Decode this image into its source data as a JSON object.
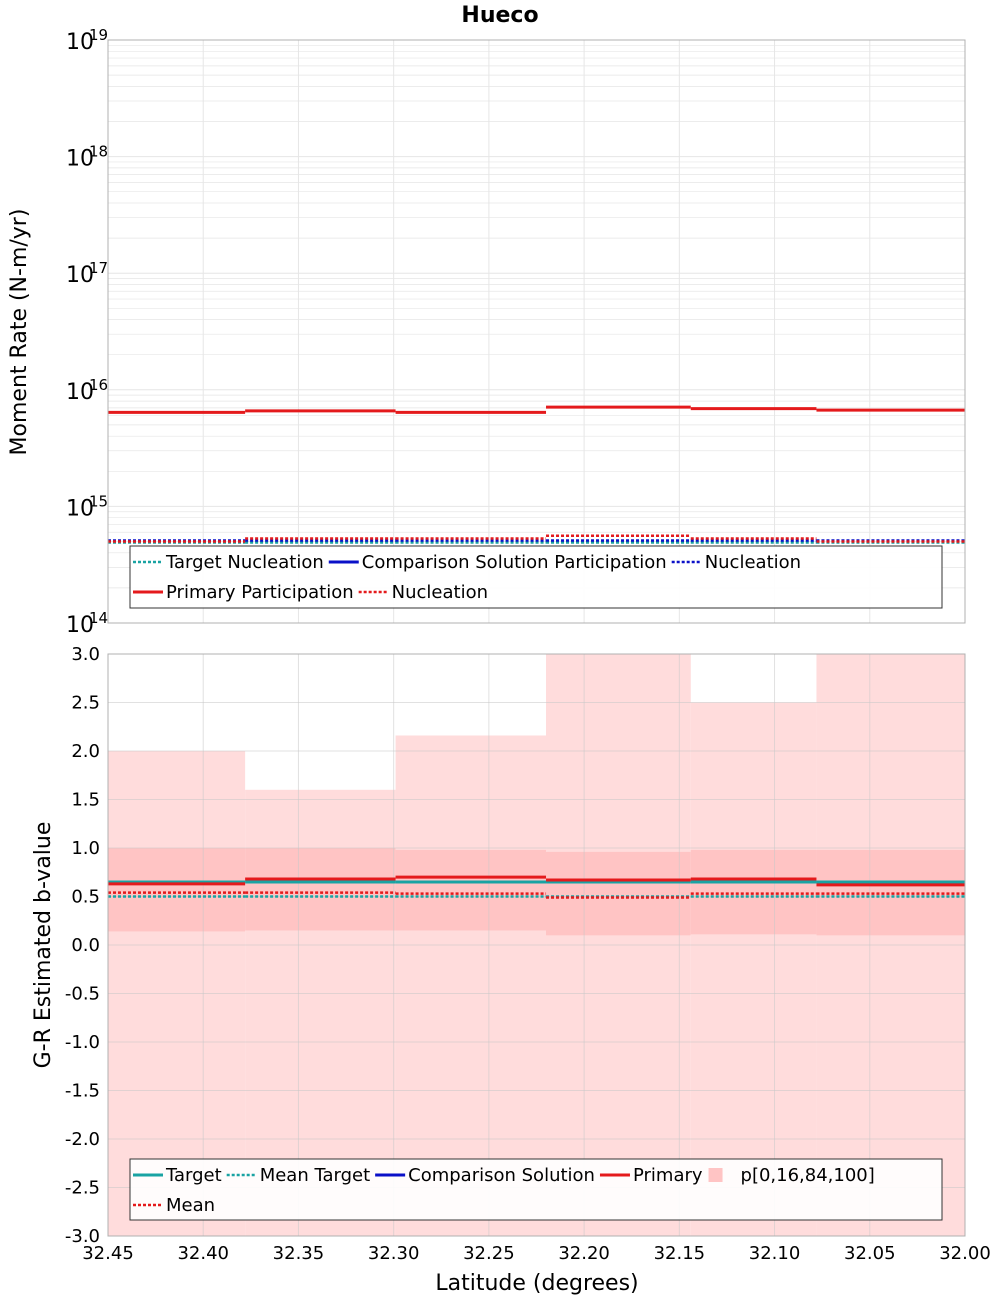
{
  "title": "Hueco",
  "colors": {
    "target": "#1aa3a3",
    "comparison": "#0a10c8",
    "primary": "#e41a1c",
    "band_outer": "#ffdcdc",
    "band_inner": "#ffc4c4",
    "grid": "#e6e6e6",
    "frame": "#b0b0b0"
  },
  "chart_data": [
    {
      "type": "line",
      "name": "moment-rate",
      "ylabel": "Moment Rate (N-m/yr)",
      "yscale": "log",
      "ylim": [
        100000000000000.0,
        1e+19
      ],
      "ytick_labels": [
        {
          "base": "10",
          "exp": "14"
        },
        {
          "base": "10",
          "exp": "15"
        },
        {
          "base": "10",
          "exp": "16"
        },
        {
          "base": "10",
          "exp": "17"
        },
        {
          "base": "10",
          "exp": "18"
        },
        {
          "base": "10",
          "exp": "19"
        }
      ],
      "xlim": [
        32.45,
        32.0
      ],
      "bin_edges": [
        32.45,
        32.378,
        32.299,
        32.22,
        32.144,
        32.078,
        32.0
      ],
      "series": [
        {
          "name": "Target Nucleation",
          "color": "#1aa3a3",
          "style": "dotted",
          "values": [
            490000000000000.0,
            490000000000000.0,
            490000000000000.0,
            490000000000000.0,
            490000000000000.0,
            490000000000000.0
          ]
        },
        {
          "name": "Comparison Solution Participation",
          "color": "#0a10c8",
          "style": "solid",
          "values": [
            null,
            null,
            null,
            null,
            null,
            null
          ]
        },
        {
          "name": "Nucleation",
          "color": "#0a10c8",
          "style": "dotted",
          "values": [
            510000000000000.0,
            510000000000000.0,
            510000000000000.0,
            510000000000000.0,
            510000000000000.0,
            510000000000000.0
          ]
        },
        {
          "name": "Primary Participation",
          "color": "#e41a1c",
          "style": "solid",
          "values": [
            6400000000000000.0,
            6600000000000000.0,
            6400000000000000.0,
            7100000000000000.0,
            6900000000000000.0,
            6700000000000000.0
          ]
        },
        {
          "name": "Nucleation",
          "color": "#e41a1c",
          "style": "dotted",
          "values": [
            500000000000000.0,
            530000000000000.0,
            530000000000000.0,
            560000000000000.0,
            530000000000000.0,
            500000000000000.0
          ]
        }
      ],
      "legend": {
        "rows": [
          [
            {
              "label": "Target Nucleation",
              "color": "#1aa3a3",
              "style": "dotted"
            },
            {
              "label": "Comparison Solution Participation",
              "color": "#0a10c8",
              "style": "solid"
            },
            {
              "label": "Nucleation",
              "color": "#0a10c8",
              "style": "dotted"
            }
          ],
          [
            {
              "label": "Primary Participation",
              "color": "#e41a1c",
              "style": "solid"
            },
            {
              "label": "Nucleation",
              "color": "#e41a1c",
              "style": "dotted"
            }
          ]
        ]
      },
      "grid": true
    },
    {
      "type": "line",
      "name": "b-value",
      "ylabel": "G-R Estimated b-value",
      "xlabel": "Latitude (degrees)",
      "ylim": [
        -3.0,
        3.0
      ],
      "yticks": [
        3.0,
        2.5,
        2.0,
        1.5,
        1.0,
        0.5,
        0.0,
        -0.5,
        -1.0,
        -1.5,
        -2.0,
        -2.5,
        -3.0
      ],
      "ytick_labels": [
        "3.0",
        "2.5",
        "2.0",
        "1.5",
        "1.0",
        "0.5",
        "0.0",
        "-0.5",
        "-1.0",
        "-1.5",
        "-2.0",
        "-2.5",
        "-3.0"
      ],
      "xlim": [
        32.45,
        32.0
      ],
      "xticks": [
        32.45,
        32.4,
        32.35,
        32.3,
        32.25,
        32.2,
        32.15,
        32.1,
        32.05,
        32.0
      ],
      "xtick_labels": [
        "32.45",
        "32.40",
        "32.35",
        "32.30",
        "32.25",
        "32.20",
        "32.15",
        "32.10",
        "32.05",
        "32.00"
      ],
      "bin_edges": [
        32.45,
        32.378,
        32.299,
        32.22,
        32.144,
        32.078,
        32.0
      ],
      "bands": {
        "name": "p[0,16,84,100]",
        "p0": [
          -3.0,
          -3.0,
          -3.0,
          -3.0,
          -3.0,
          -3.0
        ],
        "p16": [
          0.14,
          0.15,
          0.15,
          0.1,
          0.11,
          0.1
        ],
        "p84": [
          1.0,
          1.0,
          0.98,
          0.96,
          0.98,
          0.98
        ],
        "p100": [
          2.0,
          1.6,
          2.16,
          3.0,
          2.5,
          3.0
        ]
      },
      "series": [
        {
          "name": "Target",
          "color": "#1aa3a3",
          "style": "solid",
          "values": [
            0.65,
            0.65,
            0.65,
            0.65,
            0.65,
            0.65
          ]
        },
        {
          "name": "Mean Target",
          "color": "#1aa3a3",
          "style": "dotted",
          "values": [
            0.5,
            0.5,
            0.5,
            0.5,
            0.5,
            0.5
          ]
        },
        {
          "name": "Comparison Solution",
          "color": "#0a10c8",
          "style": "solid",
          "values": [
            null,
            null,
            null,
            null,
            null,
            null
          ]
        },
        {
          "name": "Primary",
          "color": "#e41a1c",
          "style": "solid",
          "values": [
            0.63,
            0.68,
            0.7,
            0.67,
            0.68,
            0.62
          ]
        },
        {
          "name": "Mean",
          "color": "#e41a1c",
          "style": "dotted",
          "values": [
            0.54,
            0.54,
            0.53,
            0.49,
            0.53,
            0.53
          ]
        }
      ],
      "legend": {
        "rows": [
          [
            {
              "label": "Target",
              "color": "#1aa3a3",
              "style": "solid"
            },
            {
              "label": "Mean Target",
              "color": "#1aa3a3",
              "style": "dotted"
            },
            {
              "label": "Comparison Solution",
              "color": "#0a10c8",
              "style": "solid"
            },
            {
              "label": "Primary",
              "color": "#e41a1c",
              "style": "solid"
            },
            {
              "label": "p[0,16,84,100]",
              "color": "#ffc4c4",
              "style": "swatch"
            }
          ],
          [
            {
              "label": "Mean",
              "color": "#e41a1c",
              "style": "dotted"
            }
          ]
        ]
      },
      "grid": true
    }
  ]
}
